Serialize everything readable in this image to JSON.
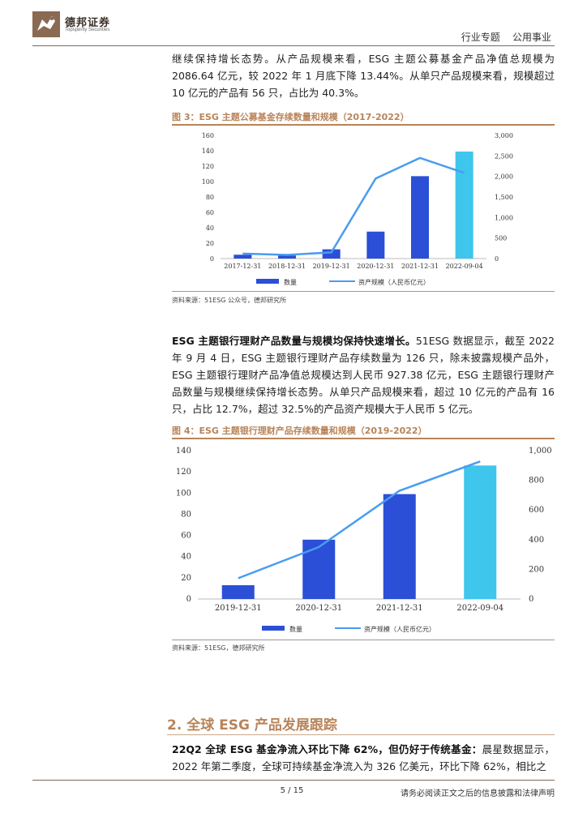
{
  "header": {
    "brand": "德邦证券",
    "brand_en": "Topsperity Securities",
    "right": "行业专题    公用事业"
  },
  "para1": {
    "text": "继续保持增长态势。从产品规模来看，ESG 主题公募基金产品净值总规模为 2086.64 亿元，较 2022 年 1 月底下降 13.44%。从单只产品规模来看，规模超过 10 亿元的产品有 56 只，占比为 40.3%。"
  },
  "fig3": {
    "title": "图 3：ESG 主题公募基金存续数量和规模（2017-2022）",
    "source": "资料来源：51ESG 公众号，德邦研究所"
  },
  "para2": {
    "bold": "ESG 主题银行理财产品数量与规模均保持快速增长。",
    "text": "51ESG 数据显示，截至 2022 年 9 月 4 日，ESG 主题银行理财产品存续数量为 126 只，除未披露规模产品外，ESG 主题银行理财产品净值总规模达到人民币 927.38 亿元，ESG 主题银行理财产品数量与规模继续保持增长态势。从单只产品规模来看，超过 10 亿元的产品有 16 只，占比 12.7%，超过 32.5%的产品资产规模大于人民币 5 亿元。"
  },
  "fig4": {
    "title": "图 4：ESG 主题银行理财产品存续数量和规模（2019-2022）",
    "source": "资料来源：51ESG，德邦研究所"
  },
  "section2": {
    "title": "2. 全球 ESG 产品发展跟踪"
  },
  "para3": {
    "bold": "22Q2 全球 ESG 基金净流入环比下降 62%，但仍好于传统基金：",
    "text": "晨星数据显示，2022 年第二季度，全球可持续基金净流入为 326 亿美元，环比下降 62%，相比之"
  },
  "footer": {
    "page": "5 / 15",
    "note": "请务必阅读正文之后的信息披露和法律声明"
  },
  "chart_data": [
    {
      "type": "bar",
      "categories": [
        "2017-12-31",
        "2018-12-31",
        "2019-12-31",
        "2020-12-31",
        "2021-12-31",
        "2022-09-04"
      ],
      "series": [
        {
          "name": "数量",
          "type": "bar",
          "axis": "left",
          "values": [
            5,
            4,
            12,
            35,
            107,
            139
          ]
        },
        {
          "name": "资产规模（人民币亿元）",
          "type": "line",
          "axis": "right",
          "values": [
            120,
            90,
            150,
            1950,
            2450,
            2087
          ]
        }
      ],
      "ylim": [
        0,
        160
      ],
      "yticks": [
        0,
        20,
        40,
        60,
        80,
        100,
        120,
        140,
        160
      ],
      "y2lim": [
        0,
        3000
      ],
      "y2ticks": [
        "0",
        "500",
        "1,000",
        "1,500",
        "2,000",
        "2,500",
        "3,000"
      ],
      "legend": "bottom",
      "colors": {
        "bar": "#2b4fd6",
        "bar_last": "#3ec6ec",
        "line": "#4a9cf0"
      }
    },
    {
      "type": "bar",
      "categories": [
        "2019-12-31",
        "2020-12-31",
        "2021-12-31",
        "2022-09-04"
      ],
      "series": [
        {
          "name": "数量",
          "type": "bar",
          "axis": "left",
          "values": [
            13,
            56,
            99,
            126
          ]
        },
        {
          "name": "资产规模（人民币亿元）",
          "type": "line",
          "axis": "right",
          "values": [
            140,
            350,
            730,
            927
          ]
        }
      ],
      "ylim": [
        0,
        140
      ],
      "yticks": [
        0,
        20,
        40,
        60,
        80,
        100,
        120,
        140
      ],
      "y2lim": [
        0,
        1000
      ],
      "y2ticks": [
        "0",
        "200",
        "400",
        "600",
        "800",
        "1,000"
      ],
      "legend": "bottom",
      "colors": {
        "bar": "#2b4fd6",
        "bar_last": "#3ec6ec",
        "line": "#4a9cf0"
      }
    }
  ]
}
